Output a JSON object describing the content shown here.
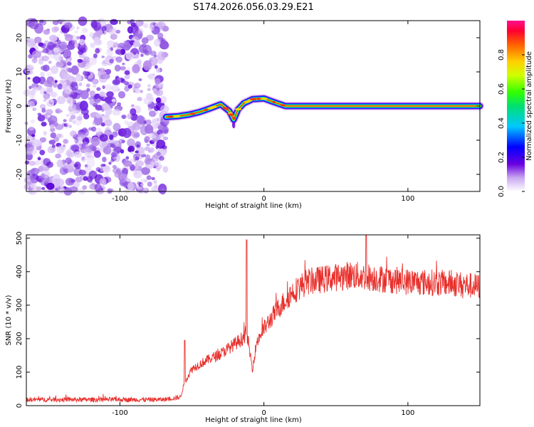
{
  "title": "S174.2026.056.03.29.E21",
  "chart_data": [
    {
      "type": "heatmap",
      "name": "spectrogram",
      "xlabel": "Height of straight line (km)",
      "ylabel": "Frequency (Hz)",
      "xlim": [
        -165,
        150
      ],
      "ylim": [
        -25,
        25
      ],
      "xticks": [
        -100,
        0,
        100
      ],
      "yticks": [
        -20,
        -10,
        0,
        10,
        20
      ],
      "noise_region_x": [
        -165,
        -68
      ],
      "ridge": [
        {
          "x": -68,
          "y": -3.2
        },
        {
          "x": -60,
          "y": -3.0
        },
        {
          "x": -52,
          "y": -2.5
        },
        {
          "x": -45,
          "y": -1.8
        },
        {
          "x": -38,
          "y": -0.8
        },
        {
          "x": -30,
          "y": 0.5
        },
        {
          "x": -24,
          "y": -1.5
        },
        {
          "x": -21,
          "y": -4.0
        },
        {
          "x": -18,
          "y": -1.0
        },
        {
          "x": -14,
          "y": 0.8
        },
        {
          "x": -8,
          "y": 2.0
        },
        {
          "x": 0,
          "y": 2.2
        },
        {
          "x": 8,
          "y": 1.0
        },
        {
          "x": 15,
          "y": 0.0
        },
        {
          "x": 150,
          "y": 0.0
        }
      ],
      "colorbar": {
        "label": "Normalized spectral amplitude",
        "range": [
          0,
          1
        ],
        "ticks": [
          "0.0",
          "0.2",
          "0.4",
          "0.6",
          "0.8"
        ],
        "tick_values": [
          0,
          0.2,
          0.4,
          0.6,
          0.8
        ]
      }
    },
    {
      "type": "line",
      "name": "snr",
      "xlabel": "Height of straight line (km)",
      "ylabel": "SNR (10 * v/v)",
      "xlim": [
        -165,
        150
      ],
      "ylim": [
        0,
        510
      ],
      "xticks": [
        -100,
        0,
        100
      ],
      "yticks": [
        0,
        100,
        200,
        300,
        400,
        500
      ],
      "color": "#e8302c",
      "envelope": [
        {
          "x": -165,
          "y": 18
        },
        {
          "x": -70,
          "y": 18
        },
        {
          "x": -58,
          "y": 25
        },
        {
          "x": -55,
          "y": 70
        },
        {
          "x": -50,
          "y": 110
        },
        {
          "x": -40,
          "y": 135
        },
        {
          "x": -30,
          "y": 155
        },
        {
          "x": -20,
          "y": 185
        },
        {
          "x": -15,
          "y": 200
        },
        {
          "x": -12,
          "y": 220
        },
        {
          "x": -8,
          "y": 110
        },
        {
          "x": -5,
          "y": 190
        },
        {
          "x": 0,
          "y": 230
        },
        {
          "x": 10,
          "y": 290
        },
        {
          "x": 20,
          "y": 340
        },
        {
          "x": 30,
          "y": 370
        },
        {
          "x": 60,
          "y": 390
        },
        {
          "x": 100,
          "y": 370
        },
        {
          "x": 130,
          "y": 365
        },
        {
          "x": 150,
          "y": 355
        }
      ],
      "spikes": [
        {
          "x": -55,
          "y": 195
        },
        {
          "x": -12,
          "y": 495
        },
        {
          "x": 71,
          "y": 510
        }
      ]
    }
  ]
}
